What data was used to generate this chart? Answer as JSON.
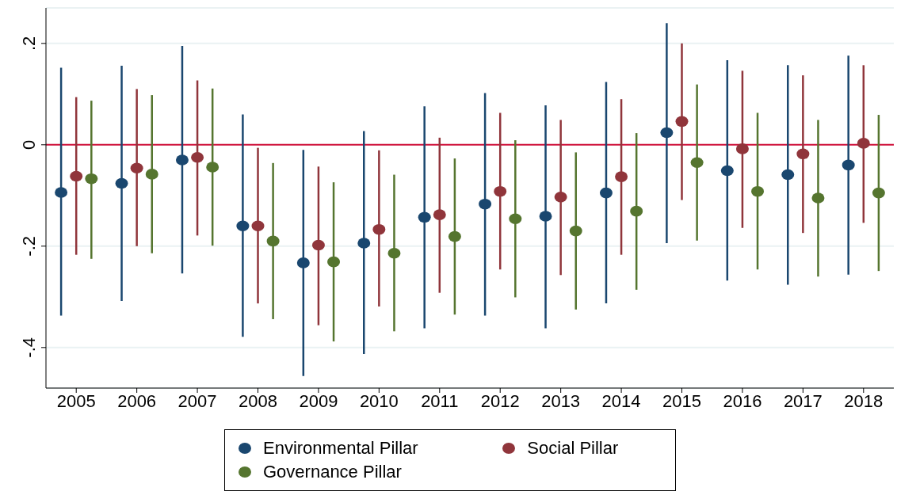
{
  "chart_data": {
    "type": "scatter",
    "categories": [
      "2005",
      "2006",
      "2007",
      "2008",
      "2009",
      "2010",
      "2011",
      "2012",
      "2013",
      "2014",
      "2015",
      "2016",
      "2017",
      "2018"
    ],
    "series": [
      {
        "name": "Environmental Pillar",
        "color": "#1a476f",
        "values": [
          -0.094,
          -0.076,
          -0.03,
          -0.16,
          -0.233,
          -0.194,
          -0.143,
          -0.117,
          -0.141,
          -0.095,
          0.024,
          -0.051,
          -0.059,
          -0.04
        ],
        "errors": [
          [
            -0.337,
            0.152
          ],
          [
            -0.308,
            0.156
          ],
          [
            -0.254,
            0.195
          ],
          [
            -0.379,
            0.06
          ],
          [
            -0.456,
            -0.01
          ],
          [
            -0.413,
            0.027
          ],
          [
            -0.362,
            0.076
          ],
          [
            -0.337,
            0.102
          ],
          [
            -0.362,
            0.078
          ],
          [
            -0.313,
            0.124
          ],
          [
            -0.194,
            0.24
          ],
          [
            -0.268,
            0.167
          ],
          [
            -0.276,
            0.157
          ],
          [
            -0.256,
            0.176
          ]
        ]
      },
      {
        "name": "Social Pillar",
        "color": "#90353b",
        "values": [
          -0.062,
          -0.046,
          -0.025,
          -0.16,
          -0.198,
          -0.167,
          -0.138,
          -0.092,
          -0.103,
          -0.063,
          0.046,
          -0.008,
          -0.018,
          0.003
        ],
        "errors": [
          [
            -0.217,
            0.094
          ],
          [
            -0.2,
            0.11
          ],
          [
            -0.179,
            0.127
          ],
          [
            -0.313,
            -0.006
          ],
          [
            -0.356,
            -0.043
          ],
          [
            -0.319,
            -0.011
          ],
          [
            -0.292,
            0.014
          ],
          [
            -0.246,
            0.063
          ],
          [
            -0.257,
            0.049
          ],
          [
            -0.217,
            0.09
          ],
          [
            -0.109,
            0.2
          ],
          [
            -0.164,
            0.146
          ],
          [
            -0.174,
            0.137
          ],
          [
            -0.154,
            0.157
          ]
        ]
      },
      {
        "name": "Governance Pillar",
        "color": "#55752f",
        "values": [
          -0.067,
          -0.058,
          -0.044,
          -0.19,
          -0.231,
          -0.214,
          -0.181,
          -0.146,
          -0.17,
          -0.131,
          -0.035,
          -0.092,
          -0.105,
          -0.095
        ],
        "errors": [
          [
            -0.225,
            0.087
          ],
          [
            -0.214,
            0.098
          ],
          [
            -0.199,
            0.111
          ],
          [
            -0.344,
            -0.036
          ],
          [
            -0.388,
            -0.074
          ],
          [
            -0.368,
            -0.059
          ],
          [
            -0.335,
            -0.027
          ],
          [
            -0.301,
            0.009
          ],
          [
            -0.325,
            -0.015
          ],
          [
            -0.286,
            0.023
          ],
          [
            -0.189,
            0.119
          ],
          [
            -0.246,
            0.063
          ],
          [
            -0.26,
            0.049
          ],
          [
            -0.249,
            0.059
          ]
        ]
      }
    ],
    "ylim": [
      -0.48,
      0.27
    ],
    "yticks": [
      {
        "value": -0.4,
        "label": "-.4"
      },
      {
        "value": -0.2,
        "label": "-.2"
      },
      0,
      {
        "value": 0.2,
        "label": ".2"
      }
    ],
    "ref_lines": [
      {
        "axis": "y",
        "value": 0,
        "color": "#d0103a"
      }
    ],
    "grid": "y",
    "legend": "bottom",
    "marker": "circle"
  }
}
